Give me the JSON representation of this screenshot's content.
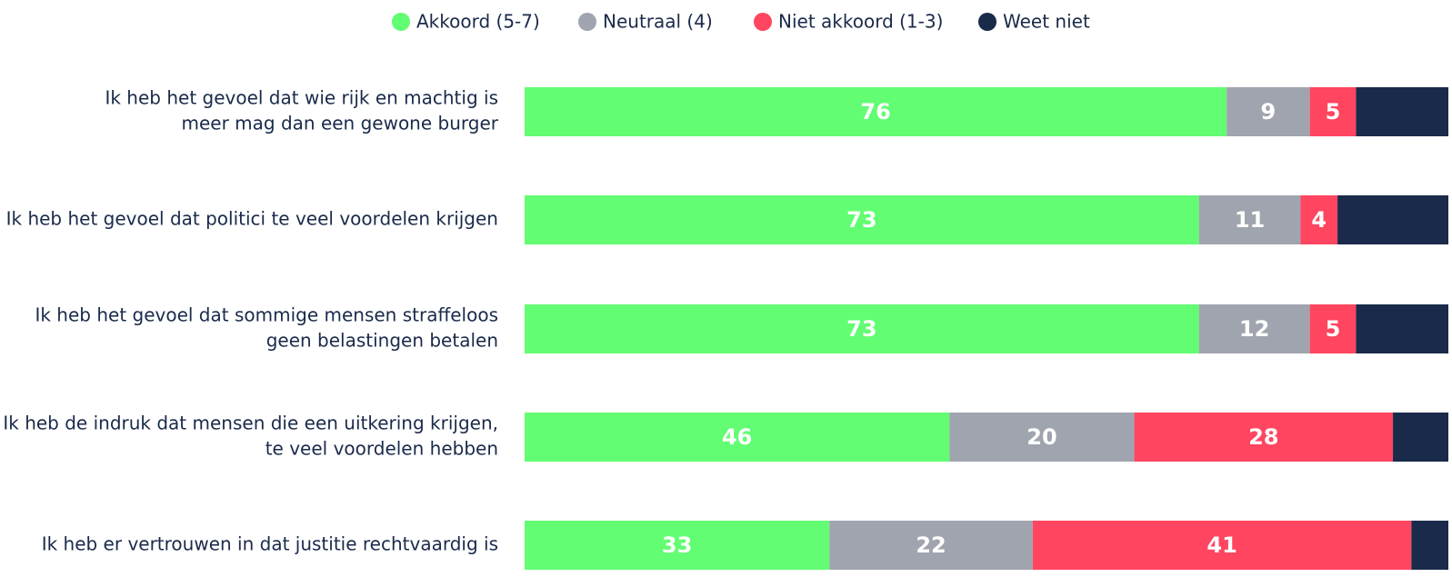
{
  "chart_data": {
    "type": "stacked-bar-horizontal",
    "categories": [
      [
        "Ik heb het gevoel dat wie rijk en machtig is",
        "meer mag dan een gewone burger"
      ],
      [
        "Ik heb het gevoel dat politici te veel voordelen krijgen"
      ],
      [
        "Ik heb het gevoel dat sommige mensen straffeloos",
        "geen belastingen betalen"
      ],
      [
        "Ik heb de indruk dat mensen die een uitkering krijgen,",
        "te veel voordelen hebben"
      ],
      [
        "Ik heb er vertrouwen in dat justitie rechtvaardig is"
      ]
    ],
    "series": [
      {
        "name": "Akkoord (5-7)",
        "color": "#62fd72",
        "values": [
          76,
          73,
          73,
          46,
          33
        ],
        "labels": true
      },
      {
        "name": "Neutraal (4)",
        "color": "#a0a4ae",
        "values": [
          9,
          11,
          12,
          20,
          22
        ],
        "labels": true
      },
      {
        "name": "Niet akkoord (1-3)",
        "color": "#ff4560",
        "values": [
          5,
          4,
          5,
          28,
          41
        ],
        "labels": true
      },
      {
        "name": "Weet niet",
        "color": "#1a2a4a",
        "values": [
          10,
          12,
          10,
          6,
          4
        ],
        "labels": false
      }
    ],
    "xlim": [
      0,
      100
    ],
    "legend": "top"
  }
}
